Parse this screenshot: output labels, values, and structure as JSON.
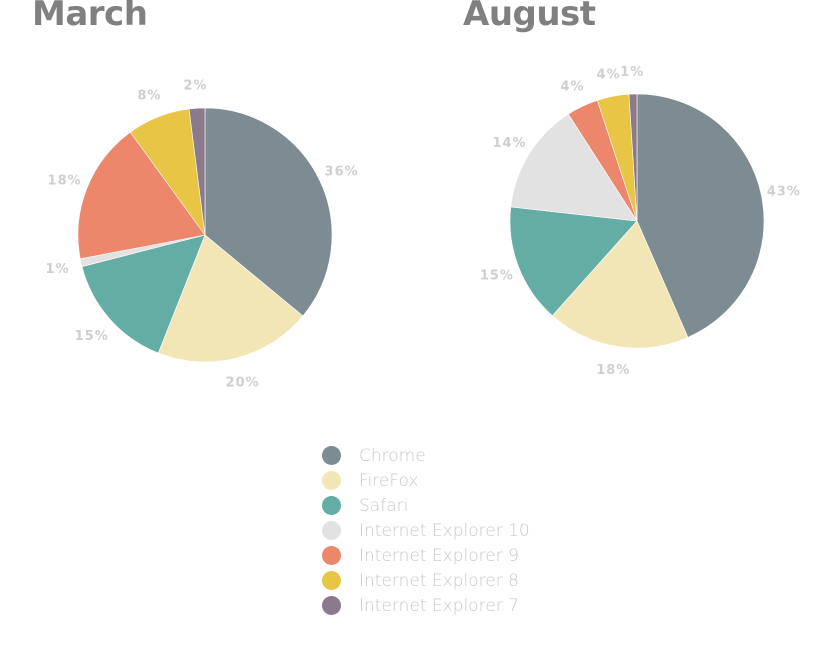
{
  "chart_data": [
    {
      "type": "pie",
      "title": "March",
      "slices": [
        {
          "name": "Chrome",
          "value": 36,
          "label": "36%"
        },
        {
          "name": "FireFox",
          "value": 20,
          "label": "20%"
        },
        {
          "name": "Safari",
          "value": 15,
          "label": "15%"
        },
        {
          "name": "Internet Explorer 10",
          "value": 1,
          "label": "1%"
        },
        {
          "name": "Internet Explorer 9",
          "value": 18,
          "label": "18%"
        },
        {
          "name": "Internet Explorer 8",
          "value": 8,
          "label": "8%"
        },
        {
          "name": "Internet Explorer 7",
          "value": 2,
          "label": "2%"
        }
      ]
    },
    {
      "type": "pie",
      "title": "August",
      "slices": [
        {
          "name": "Chrome",
          "value": 43,
          "label": "43%"
        },
        {
          "name": "FireFox",
          "value": 18,
          "label": "18%"
        },
        {
          "name": "Safari",
          "value": 15,
          "label": "15%"
        },
        {
          "name": "Internet Explorer 10",
          "value": 14,
          "label": "14%"
        },
        {
          "name": "Internet Explorer 9",
          "value": 4,
          "label": "4%"
        },
        {
          "name": "Internet Explorer 8",
          "value": 4,
          "label": "4%"
        },
        {
          "name": "Internet Explorer 7",
          "value": 1,
          "label": "1%"
        }
      ]
    }
  ],
  "legend": [
    {
      "name": "Chrome",
      "color": "#7d8c93"
    },
    {
      "name": "FireFox",
      "color": "#f2e6b6"
    },
    {
      "name": "Safari",
      "color": "#63ada4"
    },
    {
      "name": "Internet Explorer 10",
      "color": "#e2e2e2"
    },
    {
      "name": "Internet Explorer 9",
      "color": "#ec876c"
    },
    {
      "name": "Internet Explorer 8",
      "color": "#e8c544"
    },
    {
      "name": "Internet Explorer 7",
      "color": "#8b7a8b"
    }
  ]
}
